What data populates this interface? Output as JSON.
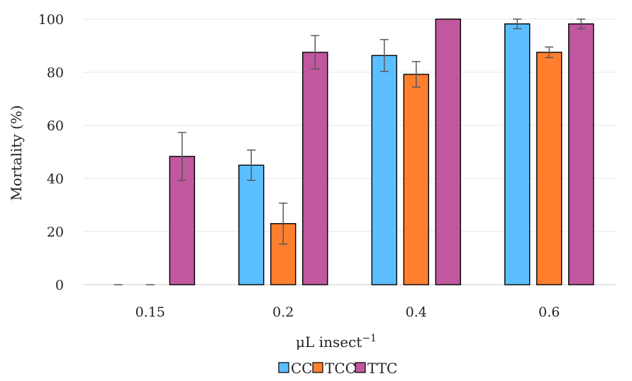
{
  "chart_data": {
    "type": "bar",
    "xlabel": "μL insect",
    "xlabel_superscript": "−1",
    "ylabel": "Mortality (%)",
    "ylim": [
      0,
      100
    ],
    "yticks": [
      "0",
      "20",
      "40",
      "60",
      "80",
      "100"
    ],
    "categories": [
      "0.15",
      "0.2",
      "0.4",
      "0.6"
    ],
    "legend": "bottom",
    "series": [
      {
        "name": "CC",
        "color": "#5BBFFF",
        "values": [
          0,
          45,
          86.3,
          98.2
        ],
        "errors": [
          0,
          5.7,
          6,
          1.8
        ]
      },
      {
        "name": "TCC",
        "color": "#FF7F2F",
        "values": [
          0,
          23,
          79.2,
          87.5
        ],
        "errors": [
          0,
          7.7,
          4.8,
          2
        ]
      },
      {
        "name": "TTC",
        "color": "#C0579F",
        "values": [
          48.3,
          87.5,
          100,
          98.2
        ],
        "errors": [
          9,
          6.3,
          0,
          1.8
        ]
      }
    ]
  }
}
